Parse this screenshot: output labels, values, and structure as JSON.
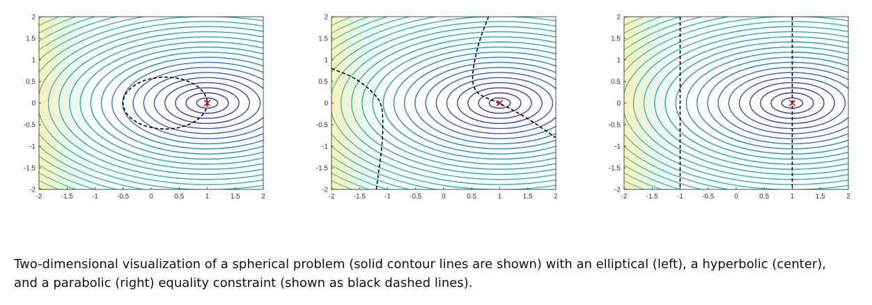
{
  "caption": "Two-dimensional visualization of a spherical problem (solid contour lines are shown) with an elliptical (left), a hyperbolic (center), and a parabolic (right) equality constraint (shown as black dashed lines).",
  "colors": {
    "contour_low": "#3e26a8",
    "contour_mid": "#1f97d8",
    "contour_mid2": "#2ec4a4",
    "contour_high": "#f0d838",
    "constraint": "#000000",
    "marker": "#e00000",
    "frame": "#222222"
  },
  "chart_data": [
    {
      "type": "contour",
      "panel": "left",
      "xlim": [
        -2,
        2
      ],
      "ylim": [
        -2,
        2
      ],
      "x_ticks": [
        "-2",
        "-1.5",
        "-1",
        "-0.5",
        "0",
        "0.5",
        "1",
        "1.5",
        "2"
      ],
      "y_ticks": [
        "2",
        "1.5",
        "1",
        "0.5",
        "0",
        "-0.5",
        "-1",
        "-1.5",
        "-2"
      ],
      "objective_center": [
        1,
        0
      ],
      "contour_axis_ratio": 1.6,
      "contour_levels": 30,
      "minimum_marker": [
        1,
        0
      ],
      "constraint": {
        "kind": "elliptical",
        "center": [
          0.25,
          0
        ],
        "rx": 0.75,
        "ry": 0.6
      }
    },
    {
      "type": "contour",
      "panel": "center",
      "xlim": [
        -2,
        2
      ],
      "ylim": [
        -2,
        2
      ],
      "x_ticks": [
        "-2",
        "-1.5",
        "-1",
        "-0.5",
        "0",
        "0.5",
        "1",
        "1.5",
        "2"
      ],
      "y_ticks": [
        "2",
        "1.5",
        "1",
        "0.5",
        "0",
        "-0.5",
        "-1",
        "-1.5",
        "-2"
      ],
      "objective_center": [
        1,
        0
      ],
      "contour_axis_ratio": 1.6,
      "contour_levels": 30,
      "minimum_marker": [
        1,
        0
      ],
      "constraint": {
        "kind": "hyperbolic",
        "branches": [
          [
            [
              -2,
              0.8
            ],
            [
              -1.6,
              0.6
            ],
            [
              -1.3,
              0.3
            ],
            [
              -1.1,
              0
            ],
            [
              -1.08,
              -0.5
            ],
            [
              -1.1,
              -1
            ],
            [
              -1.15,
              -1.5
            ],
            [
              -1.2,
              -2
            ]
          ],
          [
            [
              0.8,
              2
            ],
            [
              0.65,
              1.5
            ],
            [
              0.55,
              1
            ],
            [
              0.5,
              0.5
            ],
            [
              0.6,
              0.2
            ],
            [
              1,
              0
            ],
            [
              1.5,
              -0.35
            ],
            [
              2,
              -0.8
            ]
          ]
        ]
      }
    },
    {
      "type": "contour",
      "panel": "right",
      "xlim": [
        -2,
        2
      ],
      "ylim": [
        -2,
        2
      ],
      "x_ticks": [
        "-2",
        "-1.5",
        "-1",
        "-0.5",
        "0",
        "0.5",
        "1",
        "1.5",
        "2"
      ],
      "y_ticks": [
        "2",
        "1.5",
        "1",
        "0.5",
        "0",
        "-0.5",
        "-1",
        "-1.5",
        "-2"
      ],
      "objective_center": [
        1,
        0
      ],
      "contour_axis_ratio": 1.6,
      "contour_levels": 30,
      "minimum_marker": [
        1,
        0
      ],
      "constraint": {
        "kind": "parabolic",
        "lines_x": [
          -1,
          1
        ]
      }
    }
  ]
}
